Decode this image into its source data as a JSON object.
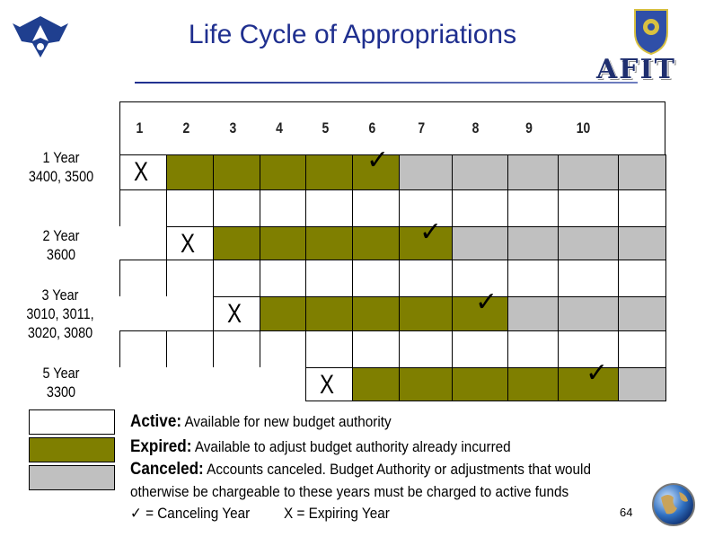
{
  "title": "Life Cycle of Appropriations",
  "logo_right_text": "AFIT",
  "years": [
    "1",
    "2",
    "3",
    "4",
    "5",
    "6",
    "7",
    "8",
    "9",
    "10"
  ],
  "rows": [
    {
      "label_line1": "1 Year",
      "label_line2": "3400, 3500",
      "label_line3": "",
      "expiring_year": 1,
      "canceling_year": 6
    },
    {
      "label_line1": "2 Year",
      "label_line2": "3600",
      "label_line3": "",
      "expiring_year": 2,
      "canceling_year": 7
    },
    {
      "label_line1": "3 Year",
      "label_line2": "3010, 3011,",
      "label_line3": "3020, 3080",
      "expiring_year": 3,
      "canceling_year": 8
    },
    {
      "label_line1": "5 Year",
      "label_line2": "3300",
      "label_line3": "",
      "expiring_year": 5,
      "canceling_year": 10
    }
  ],
  "symbols": {
    "expiring": "X",
    "canceling": "✓"
  },
  "colors": {
    "active": "#ffffff",
    "expired": "#7f7f00",
    "canceled": "#c0c0c0",
    "title": "#1f2f8f"
  },
  "legend": {
    "active_term": "Active:",
    "active_desc": "Available for new  budget authority",
    "expired_term": "Expired:",
    "expired_desc": "Available to adjust budget authority already incurred",
    "canceled_term": "Canceled:",
    "canceled_desc": "Accounts canceled.  Budget Authority or adjustments that would",
    "canceled_desc2": "otherwise be chargeable to these years must be charged to active funds",
    "key_check": "✓ = Canceling Year",
    "key_x": "X = Expiring Year"
  },
  "page_number": "64"
}
